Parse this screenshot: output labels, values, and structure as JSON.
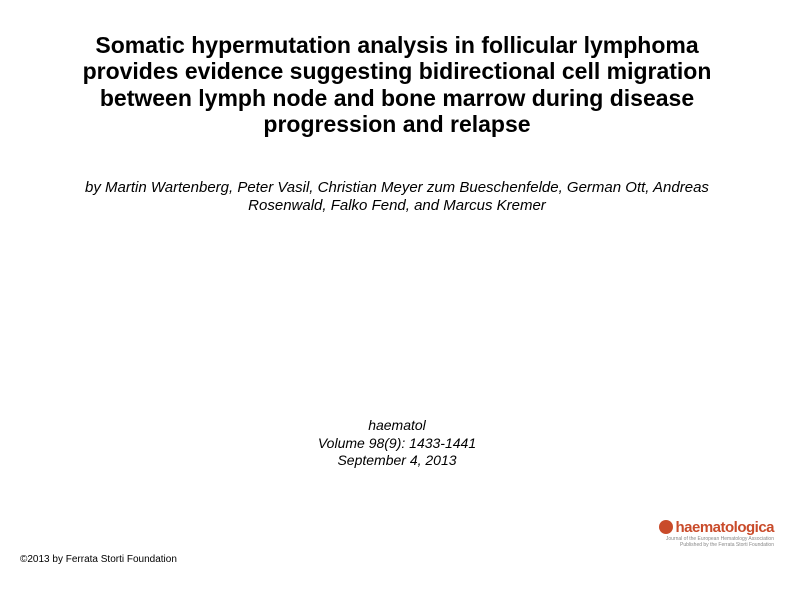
{
  "title": "Somatic hypermutation analysis in follicular lymphoma provides evidence suggesting bidirectional cell migration between lymph node and bone marrow during disease progression and relapse",
  "authors": "by Martin Wartenberg, Peter Vasil, Christian Meyer zum Bueschenfelde, German Ott, Andreas Rosenwald, Falko Fend, and Marcus Kremer",
  "citation": {
    "journal": "haematol",
    "volume_line": "Volume 98(9): 1433-1441",
    "date": "September 4, 2013"
  },
  "copyright": "©2013 by Ferrata Storti Foundation",
  "logo": {
    "text": "haematologica",
    "tagline1": "Journal of the European Hematology Association",
    "tagline2": "Published by the Ferrata Storti Foundation",
    "brand_color": "#c94b2a",
    "sub_color": "#888888"
  },
  "style": {
    "background_color": "#ffffff",
    "text_color": "#000000",
    "title_fontsize": 23,
    "title_weight": "bold",
    "authors_fontsize": 15,
    "authors_style": "italic",
    "citation_fontsize": 14,
    "citation_style": "italic",
    "copyright_fontsize": 10,
    "font_family": "Arial"
  }
}
